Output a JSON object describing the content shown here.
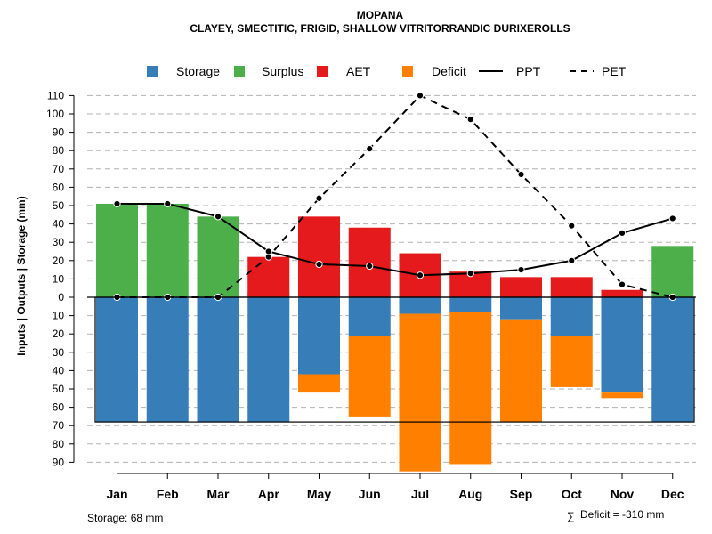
{
  "chart_data": {
    "type": "bar",
    "title": "MOPANA",
    "subtitle": "CLAYEY, SMECTITIC, FRIGID, SHALLOW VITRITORRANDIC DURIXEROLLS",
    "ylabel": "Inputs | Outputs | Storage     (mm)",
    "categories": [
      "Jan",
      "Feb",
      "Mar",
      "Apr",
      "May",
      "Jun",
      "Jul",
      "Aug",
      "Sep",
      "Oct",
      "Nov",
      "Dec"
    ],
    "y_ticks_up": [
      "10",
      "20",
      "30",
      "40",
      "50",
      "60",
      "70",
      "80",
      "90",
      "100",
      "110"
    ],
    "y_tick_zero": "0",
    "y_ticks_down": [
      "10",
      "20",
      "30",
      "40",
      "50",
      "60",
      "70",
      "80",
      "90"
    ],
    "ylim": [
      -90,
      110
    ],
    "series": [
      {
        "name": "Storage",
        "color": "#377eb8",
        "values": [
          68,
          68,
          68,
          68,
          42,
          21,
          9,
          8,
          12,
          21,
          52,
          68
        ]
      },
      {
        "name": "Surplus",
        "color": "#4daf4a",
        "values": [
          51,
          51,
          44,
          3,
          0,
          0,
          0,
          0,
          0,
          0,
          0,
          28
        ]
      },
      {
        "name": "AET",
        "color": "#e41a1c",
        "values": [
          0,
          0,
          0,
          22,
          44,
          38,
          24,
          14,
          11,
          11,
          4,
          0
        ]
      },
      {
        "name": "Deficit",
        "color": "#ff7f00",
        "values": [
          0,
          0,
          0,
          0,
          10,
          44,
          86,
          83,
          56,
          28,
          3,
          0
        ]
      },
      {
        "name": "PPT",
        "color": "#000000",
        "values": [
          51,
          51,
          44,
          25,
          18,
          17,
          12,
          13,
          15,
          20,
          35,
          43
        ]
      },
      {
        "name": "PET",
        "color": "#000000",
        "values": [
          0,
          0,
          0,
          22,
          54,
          81,
          110,
          97,
          67,
          39,
          7,
          0
        ]
      }
    ],
    "storage_capacity": 68,
    "grid": true,
    "legend_position": "top"
  },
  "footer": {
    "storage_note": "Storage: 68 mm",
    "deficit_symbol": "∑",
    "deficit_note": "Deficit = -310 mm"
  }
}
